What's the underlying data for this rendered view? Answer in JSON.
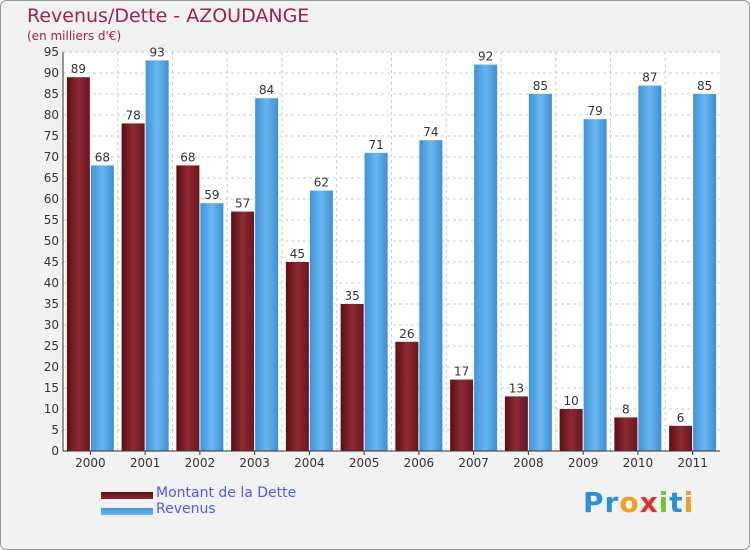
{
  "chart_data": {
    "type": "bar",
    "title": "Revenus/Dette - AZOUDANGE",
    "subtitle": "(en milliers d'€)",
    "categories": [
      "2000",
      "2001",
      "2002",
      "2003",
      "2004",
      "2005",
      "2006",
      "2007",
      "2008",
      "2009",
      "2010",
      "2011"
    ],
    "series": [
      {
        "name": "Montant de la Dette",
        "values": [
          89,
          78,
          68,
          57,
          45,
          35,
          26,
          17,
          13,
          10,
          8,
          6
        ],
        "color": "#7a1a22"
      },
      {
        "name": "Revenus",
        "values": [
          68,
          93,
          59,
          84,
          62,
          71,
          74,
          92,
          85,
          79,
          87,
          85
        ],
        "color": "#4fa3e6"
      }
    ],
    "ylim": [
      0,
      95
    ],
    "ytick_step": 5,
    "grid": true,
    "legend": "bottom-left"
  },
  "logo": {
    "letters": [
      {
        "ch": "P",
        "color": "#2d8fd6"
      },
      {
        "ch": "r",
        "color": "#2d8fd6"
      },
      {
        "ch": "o",
        "color": "#f0a020"
      },
      {
        "ch": "x",
        "color": "#d63a2a"
      },
      {
        "ch": "i",
        "color": "#7fbf2a"
      },
      {
        "ch": "t",
        "color": "#2d8fd6"
      },
      {
        "ch": "i",
        "color": "#f0a020"
      }
    ]
  }
}
